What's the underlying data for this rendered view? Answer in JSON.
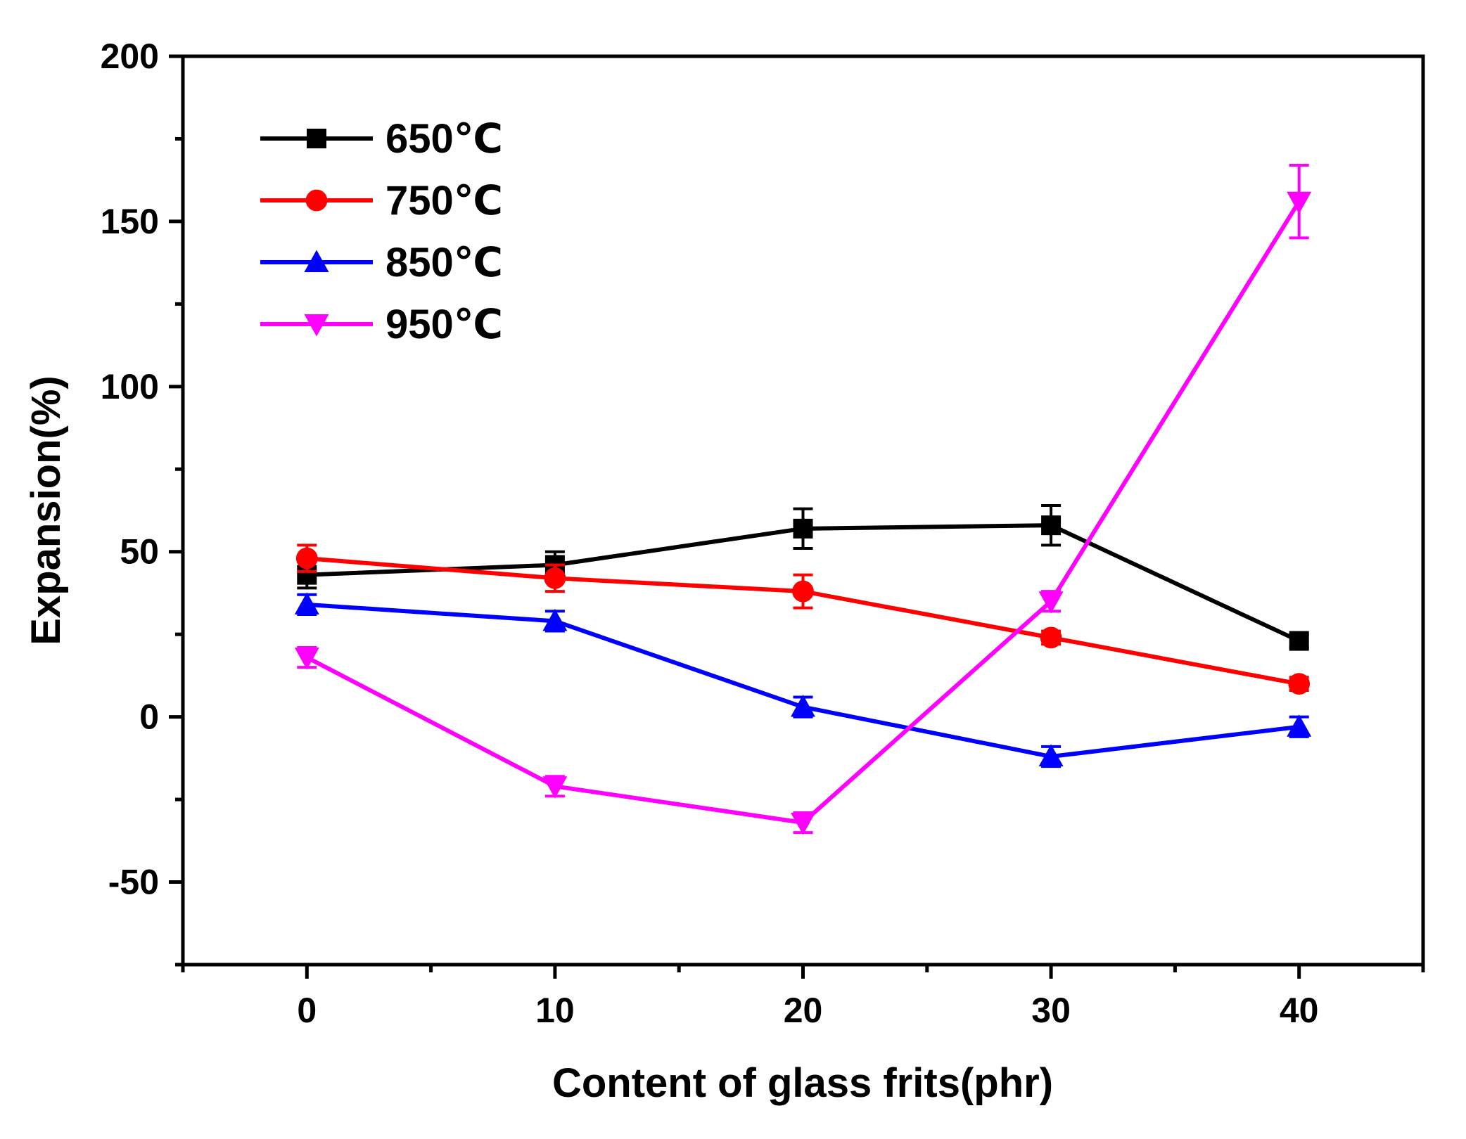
{
  "chart_data": {
    "type": "line",
    "title": "",
    "xlabel": "Content of glass frits(phr)",
    "ylabel": "Expansion(%)",
    "xlim": [
      -5,
      45
    ],
    "ylim": [
      -75,
      200
    ],
    "x_ticks": [
      "0",
      "10",
      "20",
      "30",
      "40"
    ],
    "y_ticks": [
      "-50",
      "0",
      "50",
      "100",
      "150",
      "200"
    ],
    "legend_position": "top-left",
    "x": [
      0,
      10,
      20,
      30,
      40
    ],
    "series": [
      {
        "name": "650℃",
        "color": "#000000",
        "marker": "square",
        "values": [
          43,
          46,
          57,
          58,
          23
        ],
        "errors": [
          4,
          4,
          6,
          6,
          2
        ]
      },
      {
        "name": "750℃",
        "color": "#ff0000",
        "marker": "circle",
        "values": [
          48,
          42,
          38,
          24,
          10
        ],
        "errors": [
          4,
          4,
          5,
          2,
          2
        ]
      },
      {
        "name": "850℃",
        "color": "#0000ff",
        "marker": "triangle-up",
        "values": [
          34,
          29,
          3,
          -12,
          -3
        ],
        "errors": [
          3,
          3,
          3,
          3,
          3
        ]
      },
      {
        "name": "950℃",
        "color": "#ff00ff",
        "marker": "triangle-down",
        "values": [
          18,
          -21,
          -32,
          35,
          156
        ],
        "errors": [
          3,
          3,
          3,
          3,
          11
        ]
      }
    ]
  }
}
